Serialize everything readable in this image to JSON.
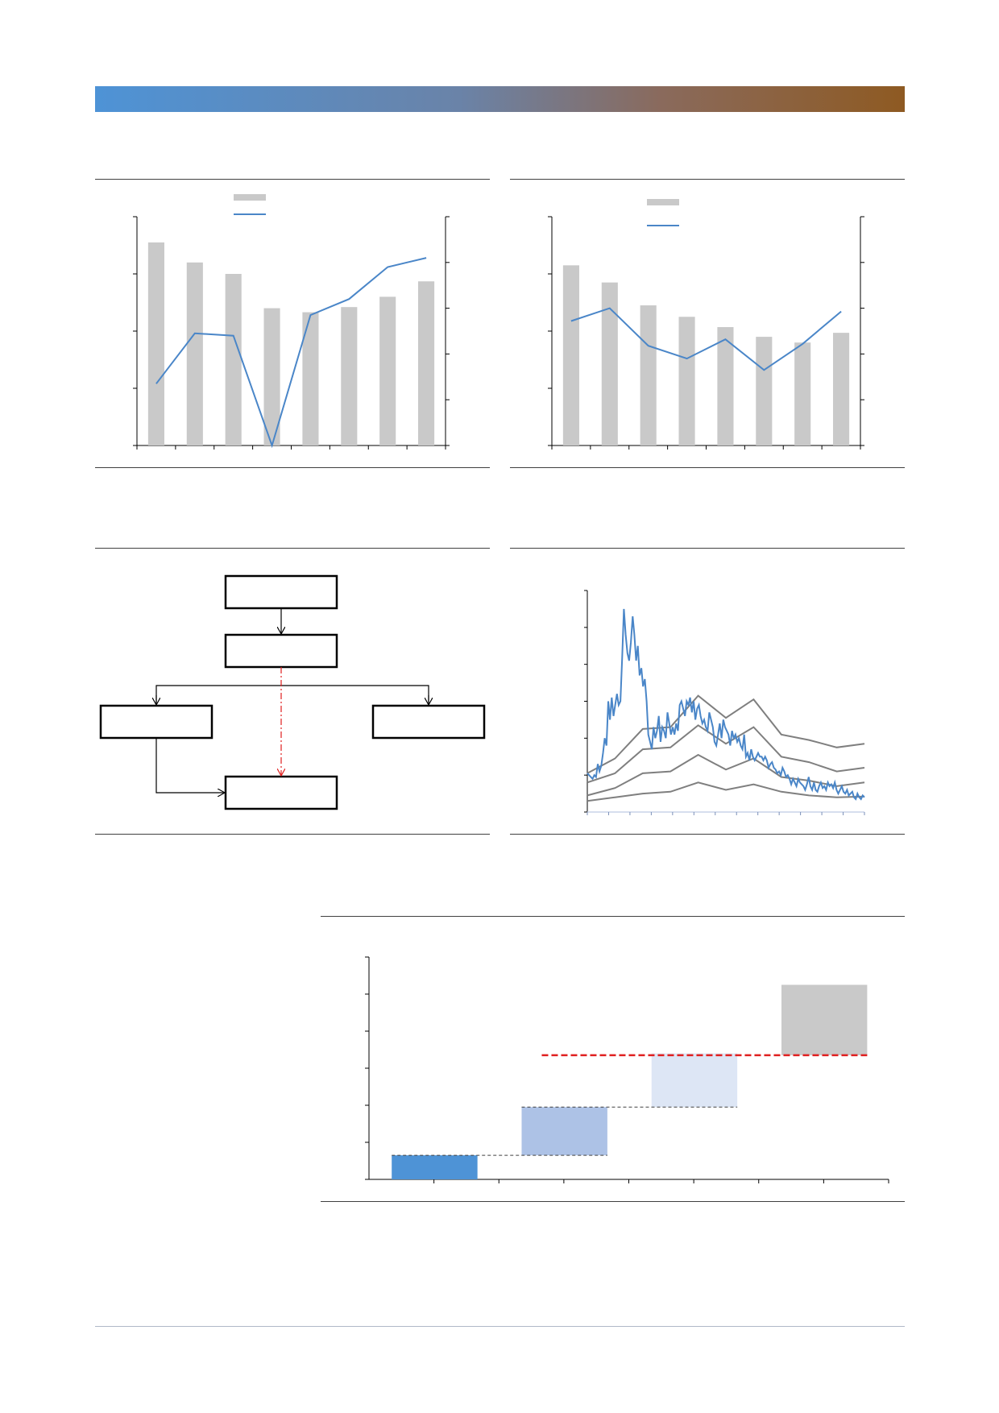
{
  "colors": {
    "banner_start": "#4e93d6",
    "banner_end": "#8e5a22",
    "bar_gray": "#c9c9c9",
    "line_blue": "#4a86c8",
    "band_gray": "#7f7f7f",
    "connector_red": "#e02020"
  },
  "chart_data": [
    {
      "type": "bar",
      "legend_items": [
        "",
        ""
      ],
      "legend_placement": "top-center",
      "categories": [
        "",
        "",
        "",
        "",
        "",
        "",
        "",
        ""
      ],
      "y_left_lim": [
        0,
        4
      ],
      "y_left_ticks": 4,
      "y_right_lim": [
        0,
        5
      ],
      "y_right_ticks": 5,
      "series": [
        {
          "kind": "bar",
          "axis": "left",
          "values": [
            3.55,
            3.2,
            3.0,
            2.4,
            2.33,
            2.42,
            2.6,
            2.87
          ]
        },
        {
          "kind": "line",
          "axis": "right",
          "values": [
            1.35,
            2.45,
            2.4,
            0.0,
            2.85,
            3.2,
            3.9,
            4.1
          ]
        }
      ]
    },
    {
      "type": "bar",
      "legend_items": [
        "",
        ""
      ],
      "legend_placement": "top-center",
      "categories": [
        "",
        "",
        "",
        "",
        "",
        "",
        "",
        ""
      ],
      "y_left_lim": [
        0,
        4
      ],
      "y_left_ticks": 4,
      "y_right_lim": [
        0,
        5
      ],
      "y_right_ticks": 5,
      "series": [
        {
          "kind": "bar",
          "axis": "left",
          "values": [
            3.15,
            2.85,
            2.45,
            2.25,
            2.07,
            1.9,
            1.8,
            1.97
          ]
        },
        {
          "kind": "line",
          "axis": "right",
          "values": [
            2.72,
            3.0,
            2.18,
            1.9,
            2.32,
            1.65,
            2.22,
            2.93
          ]
        }
      ]
    },
    {
      "type": "line",
      "ylim": [
        0,
        6
      ],
      "y_ticks": 6,
      "x_ticks": 13,
      "grid": false,
      "series": [
        {
          "color": "blue",
          "values": [
            1.05,
            1.0,
            0.95,
            0.9,
            1.0,
            0.95,
            1.3,
            1.1,
            1.25,
            1.6,
            2.0,
            1.8,
            3.0,
            2.5,
            3.1,
            2.6,
            2.9,
            3.2,
            2.9,
            3.0,
            4.2,
            5.5,
            4.8,
            4.3,
            4.1,
            4.6,
            5.3,
            4.8,
            4.1,
            4.5,
            3.7,
            3.9,
            3.4,
            3.6,
            3.0,
            2.1,
            1.9,
            1.7,
            2.3,
            2.0,
            2.2,
            2.6,
            1.9,
            2.3,
            2.2,
            2.0,
            2.7,
            2.4,
            2.1,
            2.3,
            2.1,
            2.4,
            2.2,
            2.9,
            3.0,
            2.8,
            2.6,
            3.0,
            2.9,
            3.1,
            2.7,
            3.0,
            2.5,
            2.8,
            2.9,
            2.6,
            2.4,
            2.5,
            2.3,
            2.2,
            2.7,
            2.5,
            2.3,
            1.9,
            1.8,
            2.1,
            2.4,
            2.0,
            2.5,
            2.3,
            2.2,
            2.1,
            1.8,
            2.2,
            2.0,
            2.1,
            1.9,
            2.0,
            1.8,
            1.7,
            2.1,
            1.5,
            1.6,
            1.4,
            1.7,
            1.5,
            1.4,
            1.5,
            1.6,
            1.5,
            1.5,
            1.4,
            1.5,
            1.4,
            1.2,
            1.3,
            1.35,
            1.2,
            1.15,
            1.05,
            1.1,
            1.0,
            1.2,
            1.1,
            0.95,
            1.0,
            0.9,
            0.75,
            0.9,
            0.8,
            0.7,
            0.9,
            0.8,
            0.75,
            0.7,
            0.6,
            0.75,
            0.95,
            0.7,
            0.6,
            0.8,
            0.6,
            0.55,
            0.7,
            0.8,
            0.65,
            0.7,
            0.6,
            0.8,
            0.7,
            0.75,
            0.65,
            0.8,
            0.6,
            0.5,
            0.6,
            0.7,
            0.55,
            0.5,
            0.6,
            0.45,
            0.5,
            0.55,
            0.4,
            0.35,
            0.5,
            0.4,
            0.35,
            0.45,
            0.4
          ]
        },
        {
          "color": "gray",
          "values": [
            1.05,
            1.45,
            2.25,
            2.3,
            3.15,
            2.55,
            3.05,
            2.1,
            1.95,
            1.75,
            1.85
          ]
        },
        {
          "color": "gray",
          "values": [
            0.8,
            1.05,
            1.7,
            1.75,
            2.35,
            1.85,
            2.3,
            1.5,
            1.35,
            1.1,
            1.2
          ]
        },
        {
          "color": "gray",
          "values": [
            0.45,
            0.65,
            1.05,
            1.1,
            1.55,
            1.15,
            1.45,
            0.95,
            0.85,
            0.7,
            0.8
          ]
        },
        {
          "color": "gray",
          "values": [
            0.3,
            0.4,
            0.5,
            0.55,
            0.8,
            0.6,
            0.75,
            0.55,
            0.45,
            0.4,
            0.42
          ]
        }
      ]
    },
    {
      "type": "bar",
      "subtype": "waterfall",
      "y_ticks": 6,
      "x_slots": 8,
      "ylim": [
        0,
        6
      ],
      "reference_level": 3.35,
      "steps": [
        {
          "base": 0.0,
          "value": 0.65,
          "color": "#4e93d6"
        },
        {
          "base": 0.65,
          "value": 1.3,
          "color": "#adc2e6"
        },
        {
          "base": 1.95,
          "value": 1.45,
          "color": "#dde6f5"
        },
        {
          "base": 3.35,
          "value": 1.9,
          "color": "#c9c9c9"
        }
      ]
    }
  ],
  "diagram": {
    "boxes": [
      "",
      "",
      "",
      "",
      ""
    ]
  }
}
